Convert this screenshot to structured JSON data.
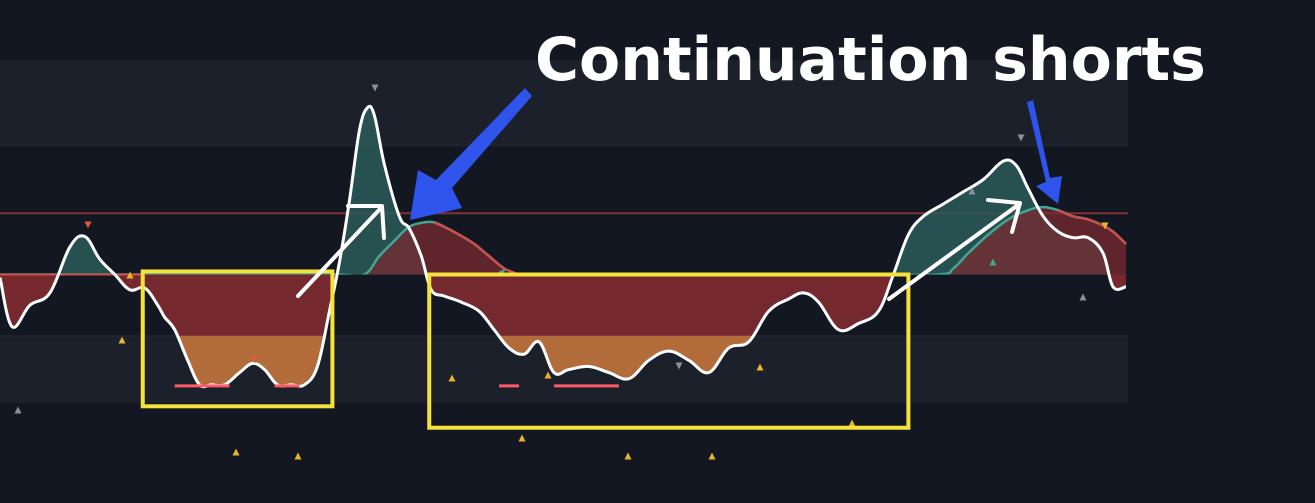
{
  "chart_data": {
    "type": "area",
    "title": "",
    "xlabel": "",
    "ylabel": "",
    "xlim": [
      0,
      1130
    ],
    "ylim": [
      -2.7,
      3.5
    ],
    "levels": [
      2.1,
      1.0,
      0,
      -1.0
    ],
    "grid": true,
    "legend": "none",
    "series": [
      {
        "role": "oscillator",
        "color": "#ffffff",
        "x": [
          0,
          12,
          30,
          50,
          70,
          85,
          100,
          115,
          130,
          145,
          158,
          165,
          175,
          188,
          200,
          212,
          225,
          240,
          253,
          265,
          278,
          292,
          305,
          318,
          330,
          340,
          350,
          360,
          368,
          375,
          385,
          400,
          410,
          422,
          432,
          445,
          462,
          480,
          495,
          510,
          525,
          540,
          555,
          570,
          590,
          610,
          630,
          650,
          670,
          690,
          710,
          730,
          750,
          770,
          790,
          805,
          820,
          840,
          860,
          880,
          895,
          910,
          925,
          945,
          965,
          985,
          1005,
          1018,
          1030,
          1045,
          1060,
          1075,
          1090,
          1105,
          1115,
          1128
        ],
        "y": [
          -0.05,
          -0.85,
          -0.5,
          -0.3,
          0.45,
          0.62,
          0.25,
          0.0,
          -0.25,
          -0.22,
          -0.5,
          -0.7,
          -0.9,
          -1.4,
          -1.8,
          -1.8,
          -1.8,
          -1.6,
          -1.45,
          -1.55,
          -1.8,
          -1.8,
          -1.8,
          -1.5,
          -0.6,
          0.2,
          1.2,
          2.35,
          2.72,
          2.6,
          1.8,
          0.95,
          0.75,
          0.3,
          -0.25,
          -0.35,
          -0.45,
          -0.6,
          -0.9,
          -1.2,
          -1.3,
          -1.1,
          -1.6,
          -1.55,
          -1.5,
          -1.6,
          -1.7,
          -1.4,
          -1.25,
          -1.4,
          -1.6,
          -1.2,
          -1.1,
          -0.6,
          -0.4,
          -0.3,
          -0.45,
          -0.9,
          -0.8,
          -0.6,
          0.0,
          0.65,
          0.95,
          1.15,
          1.35,
          1.55,
          1.85,
          1.78,
          1.4,
          0.95,
          0.7,
          0.6,
          0.6,
          0.35,
          -0.2,
          -0.2
        ]
      },
      {
        "role": "signal",
        "x": [
          0,
          60,
          120,
          160,
          310,
          340,
          365,
          380,
          395,
          410,
          425,
          435,
          445,
          460,
          475,
          490,
          505,
          520,
          700,
          860,
          940,
          955,
          970,
          990,
          1010,
          1030,
          1045,
          1060,
          1075,
          1090,
          1105,
          1115,
          1128
        ],
        "y": [
          0,
          0,
          0,
          0,
          0,
          0,
          0,
          0.3,
          0.55,
          0.78,
          0.85,
          0.85,
          0.78,
          0.65,
          0.5,
          0.3,
          0.1,
          0,
          0,
          0,
          0,
          0.1,
          0.35,
          0.65,
          0.9,
          1.05,
          1.1,
          1.05,
          0.95,
          0.9,
          0.8,
          0.7,
          0.5
        ]
      }
    ],
    "highlight_boxes": [
      {
        "x": [
          143,
          333
        ],
        "y": [
          0.05,
          -2.15
        ]
      },
      {
        "x": [
          430,
          910
        ],
        "y": [
          0.0,
          -2.5
        ]
      }
    ],
    "annotation_text": "Continuation shorts",
    "colors": {
      "background": "#131722",
      "bull_fill": "#2c5b58",
      "bear_fill": "#7a2a30",
      "extreme_fill": "#b5703a",
      "signal_up": "#3fa796",
      "signal_down": "#c9514c",
      "box": "#f5e33b",
      "blue_arrow": "#2f54eb",
      "white_arrow": "#ffffff"
    }
  }
}
